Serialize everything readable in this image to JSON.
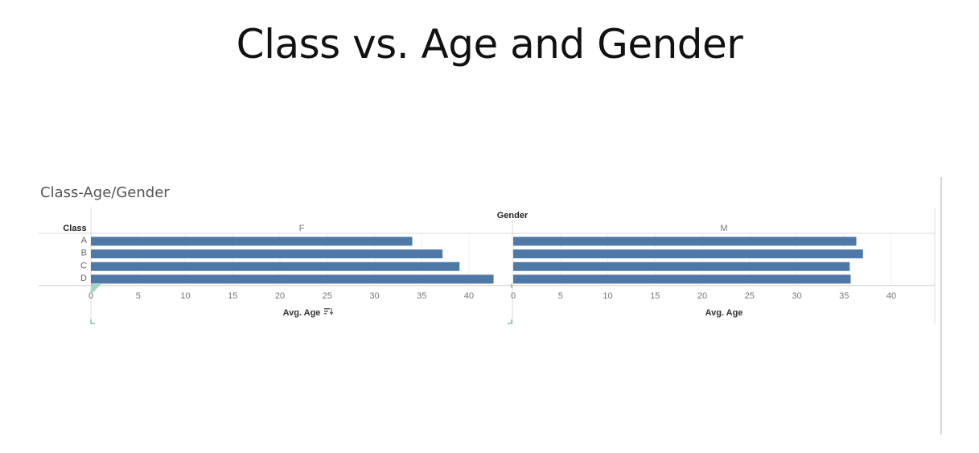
{
  "slide": {
    "title": "Class vs. Age and Gender"
  },
  "chart_data": {
    "type": "bar",
    "orientation": "horizontal",
    "title": "Class-Age/Gender",
    "column_header": "Gender",
    "row_header": "Class",
    "xlabel": "Avg. Age",
    "xlim": [
      0,
      45
    ],
    "x_ticks": [
      0,
      5,
      10,
      15,
      20,
      25,
      30,
      35,
      40
    ],
    "categories": [
      "A",
      "B",
      "C",
      "D"
    ],
    "panes": [
      {
        "name": "F",
        "values": [
          34.0,
          37.2,
          39.0,
          42.6
        ],
        "axis_title": "Avg. Age",
        "sort_icon": "sort-descending-icon"
      },
      {
        "name": "M",
        "values": [
          36.3,
          37.0,
          35.6,
          35.7
        ],
        "axis_title": "Avg. Age"
      }
    ],
    "bar_color": "#4e79a7",
    "grid": true
  }
}
